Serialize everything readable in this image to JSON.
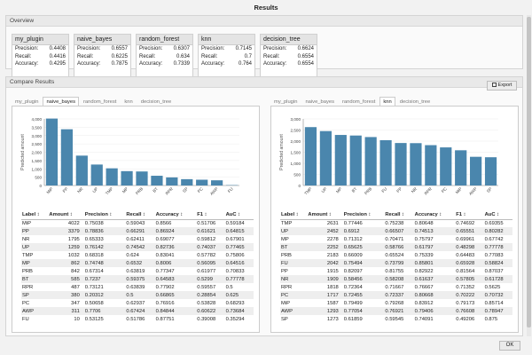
{
  "window": {
    "title": "Results"
  },
  "overview": {
    "title": "Overview",
    "labels": {
      "precision": "Precision:",
      "recall": "Recall:",
      "accuracy": "Accuracy:"
    },
    "cards": [
      {
        "name": "my_plugin",
        "precision": "0.4408",
        "recall": "0.4416",
        "accuracy": "0.4295"
      },
      {
        "name": "naive_bayes",
        "precision": "0.6557",
        "recall": "0.6225",
        "accuracy": "0.7875"
      },
      {
        "name": "random_forest",
        "precision": "0.6307",
        "recall": "0.634",
        "accuracy": "0.7339"
      },
      {
        "name": "knn",
        "precision": "0.7145",
        "recall": "0.7",
        "accuracy": "0.764"
      },
      {
        "name": "decision_tree",
        "precision": "0.6624",
        "recall": "0.6554",
        "accuracy": "0.6554"
      }
    ]
  },
  "compare": {
    "title": "Compare Results",
    "export_label": "Export",
    "tabs": [
      "my_plugin",
      "naive_bayes",
      "random_forest",
      "knn",
      "decision_tree"
    ],
    "columns": [
      "Label ↕",
      "Amount ↕",
      "Precision ↕",
      "Recall ↕",
      "Accuracy ↕",
      "F1 ↕",
      "AuC ↕"
    ],
    "left": {
      "active_tab": 1,
      "rows": [
        [
          "MiP",
          "4022",
          "0.75038",
          "0.59043",
          "0.8566",
          "0.51706",
          "0.59184"
        ],
        [
          "PP",
          "3379",
          "0.78836",
          "0.66291",
          "0.86924",
          "0.61621",
          "0.64815"
        ],
        [
          "NR",
          "1795",
          "0.65333",
          "0.62411",
          "0.69077",
          "0.59812",
          "0.67901"
        ],
        [
          "UP",
          "1259",
          "0.76142",
          "0.74542",
          "0.82736",
          "0.74037",
          "0.77465"
        ],
        [
          "TMP",
          "1032",
          "0.68318",
          "0.624",
          "0.83041",
          "0.57782",
          "0.75806"
        ],
        [
          "MP",
          "862",
          "0.74748",
          "0.6532",
          "0.8006",
          "0.56095",
          "0.64516"
        ],
        [
          "PRB",
          "842",
          "0.67314",
          "0.63819",
          "0.77347",
          "0.61977",
          "0.70833"
        ],
        [
          "BT",
          "585",
          "0.7237",
          "0.59375",
          "0.64583",
          "0.5299",
          "0.77778"
        ],
        [
          "RPR",
          "487",
          "0.73121",
          "0.63839",
          "0.77902",
          "0.59557",
          "0.5"
        ],
        [
          "SP",
          "380",
          "0.20312",
          "0.5",
          "0.66865",
          "0.28854",
          "0.625"
        ],
        [
          "PC",
          "347",
          "0.50658",
          "0.62937",
          "0.76916",
          "0.53828",
          "0.68293"
        ],
        [
          "AWP",
          "311",
          "0.7706",
          "0.67424",
          "0.84844",
          "0.60622",
          "0.73684"
        ],
        [
          "FU",
          "10",
          "0.53125",
          "0.51786",
          "0.87751",
          "0.39008",
          "0.35294"
        ]
      ]
    },
    "right": {
      "active_tab": 3,
      "rows": [
        [
          "TMP",
          "2631",
          "0.77446",
          "0.75238",
          "0.80648",
          "0.74692",
          "0.69355"
        ],
        [
          "UP",
          "2452",
          "0.6912",
          "0.66507",
          "0.74513",
          "0.65551",
          "0.80282"
        ],
        [
          "MP",
          "2278",
          "0.71312",
          "0.70471",
          "0.75797",
          "0.69961",
          "0.67742"
        ],
        [
          "BT",
          "2252",
          "0.65625",
          "0.58766",
          "0.61797",
          "0.48298",
          "0.77778"
        ],
        [
          "PRB",
          "2183",
          "0.66009",
          "0.65524",
          "0.75339",
          "0.64483",
          "0.77083"
        ],
        [
          "FU",
          "2042",
          "0.75494",
          "0.73799",
          "0.85801",
          "0.65928",
          "0.58824"
        ],
        [
          "PP",
          "1915",
          "0.82097",
          "0.81755",
          "0.82922",
          "0.81564",
          "0.87037"
        ],
        [
          "NR",
          "1909",
          "0.58456",
          "0.58208",
          "0.61637",
          "0.57805",
          "0.61728"
        ],
        [
          "RPR",
          "1818",
          "0.72364",
          "0.71667",
          "0.76667",
          "0.71352",
          "0.5625"
        ],
        [
          "PC",
          "1717",
          "0.72455",
          "0.72337",
          "0.80668",
          "0.70222",
          "0.70732"
        ],
        [
          "MiP",
          "1587",
          "0.79499",
          "0.79268",
          "0.83912",
          "0.79173",
          "0.85714"
        ],
        [
          "AWP",
          "1293",
          "0.77054",
          "0.76921",
          "0.79406",
          "0.76608",
          "0.78947"
        ],
        [
          "SP",
          "1273",
          "0.61859",
          "0.59545",
          "0.74091",
          "0.49206",
          "0.875"
        ]
      ]
    }
  },
  "chart_data": [
    {
      "type": "bar",
      "title": "",
      "xlabel": "",
      "ylabel": "Predicted amount",
      "ylim": [
        0,
        4000
      ],
      "yticks": [
        "0",
        "500",
        "1,000",
        "1,500",
        "2,000",
        "2,500",
        "3,000",
        "3,500",
        "4,000"
      ],
      "categories": [
        "MiP",
        "PP",
        "NR",
        "UP",
        "TMP",
        "MP",
        "PRB",
        "BT",
        "RPR",
        "SP",
        "PC",
        "AWP",
        "FU"
      ],
      "values": [
        4022,
        3379,
        1795,
        1259,
        1032,
        862,
        842,
        585,
        487,
        380,
        347,
        311,
        10
      ],
      "color": "#4a86ad"
    },
    {
      "type": "bar",
      "title": "",
      "xlabel": "",
      "ylabel": "Predicted amount",
      "ylim": [
        0,
        3000
      ],
      "yticks": [
        "0",
        "500",
        "1,000",
        "1,500",
        "2,000",
        "2,500",
        "3,000"
      ],
      "categories": [
        "TMP",
        "UP",
        "MP",
        "BT",
        "PRB",
        "FU",
        "PP",
        "NR",
        "RPR",
        "PC",
        "MiP",
        "AWP",
        "SP"
      ],
      "values": [
        2631,
        2452,
        2278,
        2252,
        2183,
        2042,
        1915,
        1909,
        1818,
        1717,
        1587,
        1293,
        1273
      ],
      "color": "#4a86ad"
    }
  ],
  "footer": {
    "ok_label": "OK"
  }
}
